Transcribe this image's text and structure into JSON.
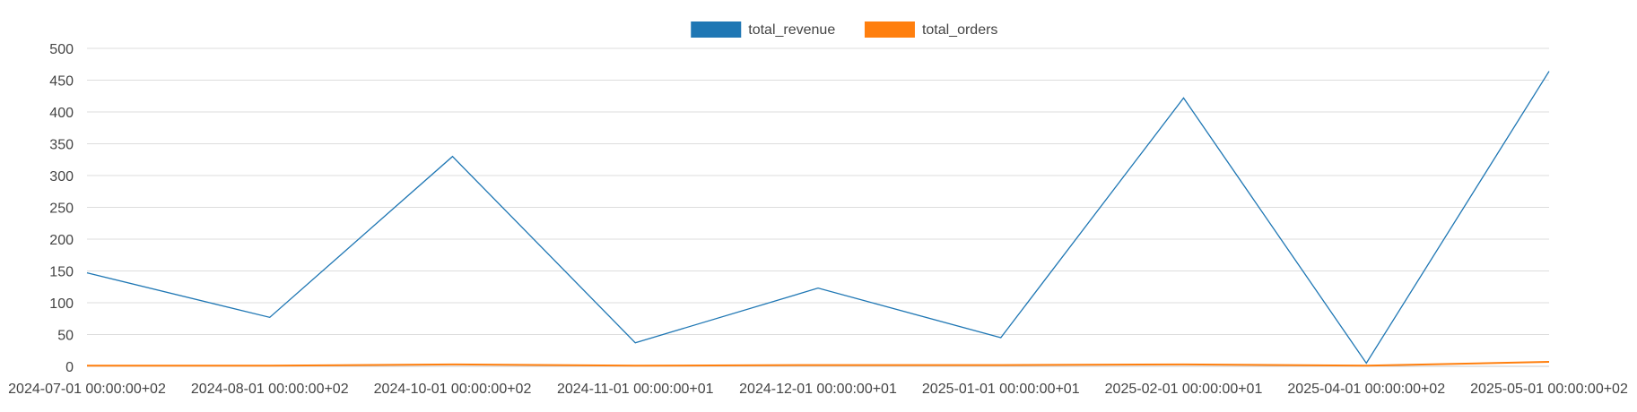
{
  "chart_data": {
    "type": "line",
    "title": "",
    "xlabel": "",
    "ylabel": "",
    "ylim": [
      0,
      500
    ],
    "yticks": [
      "0",
      "50",
      "100",
      "150",
      "200",
      "250",
      "300",
      "350",
      "400",
      "450",
      "500"
    ],
    "grid": true,
    "legend_position": "top-center",
    "categories": [
      "2024-07-01 00:00:00+02",
      "2024-08-01 00:00:00+02",
      "2024-10-01 00:00:00+02",
      "2024-11-01 00:00:00+01",
      "2024-12-01 00:00:00+01",
      "2025-01-01 00:00:00+01",
      "2025-02-01 00:00:00+01",
      "2025-04-01 00:00:00+02",
      "2025-05-01 00:00:00+02"
    ],
    "series": [
      {
        "name": "total_revenue",
        "color": "#1f77b4",
        "values": [
          147,
          77,
          330,
          37,
          123,
          45,
          422,
          5,
          464
        ]
      },
      {
        "name": "total_orders",
        "color": "#ff7f0e",
        "values": [
          1,
          1,
          3,
          1,
          2,
          2,
          3,
          1,
          7
        ]
      }
    ]
  }
}
